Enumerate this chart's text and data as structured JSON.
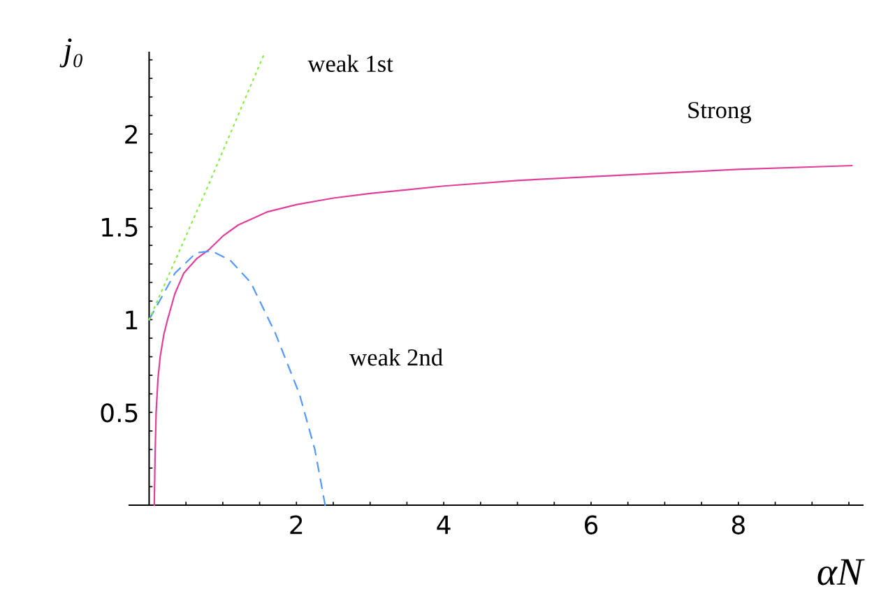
{
  "chart_data": {
    "type": "line",
    "xlabel": "αN",
    "ylabel": "j₀",
    "xlim": [
      -0.27,
      9.69
    ],
    "ylim": [
      0,
      2.44
    ],
    "xticks": [
      {
        "value": 0.5,
        "label": null
      },
      {
        "value": 1,
        "label": null
      },
      {
        "value": 1.5,
        "label": null
      },
      2,
      {
        "value": 2.5,
        "label": null
      },
      {
        "value": 3,
        "label": null
      },
      {
        "value": 3.5,
        "label": null
      },
      4,
      {
        "value": 4.5,
        "label": null
      },
      {
        "value": 5,
        "label": null
      },
      {
        "value": 5.5,
        "label": null
      },
      6,
      {
        "value": 6.5,
        "label": null
      },
      {
        "value": 7,
        "label": null
      },
      {
        "value": 7.5,
        "label": null
      },
      8,
      {
        "value": 8.5,
        "label": null
      },
      {
        "value": 9,
        "label": null
      },
      {
        "value": 9.5,
        "label": null
      }
    ],
    "yticks": [
      {
        "value": 0.1,
        "label": null
      },
      {
        "value": 0.2,
        "label": null
      },
      {
        "value": 0.3,
        "label": null
      },
      {
        "value": 0.4,
        "label": null
      },
      0.5,
      {
        "value": 0.6,
        "label": null
      },
      {
        "value": 0.7,
        "label": null
      },
      {
        "value": 0.8,
        "label": null
      },
      {
        "value": 0.9,
        "label": null
      },
      1,
      {
        "value": 1.1,
        "label": null
      },
      {
        "value": 1.2,
        "label": null
      },
      {
        "value": 1.3,
        "label": null
      },
      {
        "value": 1.4,
        "label": null
      },
      1.5,
      {
        "value": 1.6,
        "label": null
      },
      {
        "value": 1.7,
        "label": null
      },
      {
        "value": 1.8,
        "label": null
      },
      {
        "value": 1.9,
        "label": null
      },
      2,
      {
        "value": 2.1,
        "label": null
      },
      {
        "value": 2.2,
        "label": null
      },
      {
        "value": 2.3,
        "label": null
      },
      {
        "value": 2.4,
        "label": null
      }
    ],
    "series": [
      {
        "name": "Strong",
        "color": "#e0409a",
        "line_style": "solid",
        "x": [
          0.07,
          0.08,
          0.095,
          0.12,
          0.15,
          0.2,
          0.25,
          0.35,
          0.47,
          0.65,
          0.82,
          1.0,
          1.21,
          1.6,
          2.0,
          2.5,
          3.0,
          3.5,
          4.0,
          5.0,
          6.0,
          7.0,
          8.0,
          9.54
        ],
        "values": [
          0,
          0.25,
          0.5,
          0.68,
          0.8,
          0.92,
          1.0,
          1.14,
          1.25,
          1.33,
          1.38,
          1.45,
          1.51,
          1.58,
          1.62,
          1.655,
          1.68,
          1.7,
          1.72,
          1.75,
          1.77,
          1.79,
          1.81,
          1.83
        ]
      },
      {
        "name": "weak 1st",
        "color": "#88ee44",
        "line_style": "dotted",
        "x": [
          0,
          0.81,
          1.56
        ],
        "values": [
          1,
          1.73,
          2.43
        ]
      },
      {
        "name": "weak 2nd",
        "color": "#5599ff",
        "line_style": "dashed",
        "x": [
          0,
          0.35,
          0.64,
          0.85,
          1.1,
          1.38,
          1.71,
          2.04,
          2.25,
          2.39
        ],
        "values": [
          1,
          1.25,
          1.36,
          1.37,
          1.32,
          1.2,
          0.93,
          0.6,
          0.3,
          0
        ]
      }
    ]
  }
}
